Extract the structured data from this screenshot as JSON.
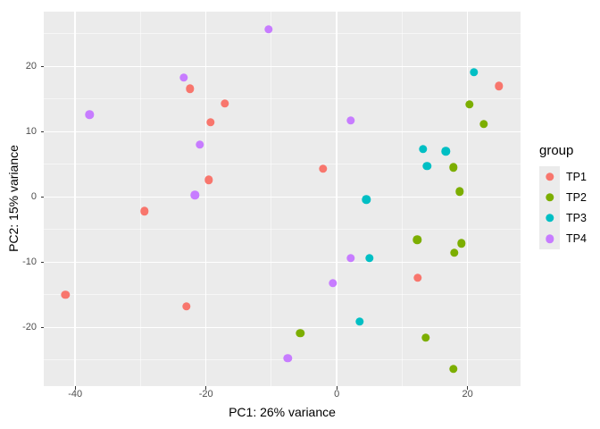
{
  "colors": {
    "background": "#FFFFFF",
    "panel_background": "#EBEBEB",
    "grid_major": "#FFFFFF",
    "tick_mark": "#333333",
    "tick_label": "#4D4D4D",
    "axis_title": "#000000"
  },
  "chart_data": {
    "type": "scatter",
    "title": "",
    "xlabel": "PC1: 26% variance",
    "ylabel": "PC2: 15% variance",
    "legend_title": "group",
    "legend_position": "right",
    "grid": "on",
    "xlim": [
      -44.8,
      28.1
    ],
    "ylim": [
      -29.0,
      28.4
    ],
    "x_ticks": [
      -40,
      -20,
      0,
      20
    ],
    "x_tick_labels": [
      "-40",
      "-20",
      "0",
      "20"
    ],
    "y_ticks": [
      -20,
      -10,
      0,
      10,
      20
    ],
    "y_tick_labels": [
      "-20",
      "-10",
      "0",
      "10",
      "20"
    ],
    "x_minor_ticks": [
      -30,
      -10,
      10
    ],
    "y_minor_ticks": [
      -25,
      -15,
      -5,
      5,
      15,
      25
    ],
    "series": [
      {
        "name": "TP1",
        "color": "#F8766D",
        "points": [
          [
            -22.4,
            16.6
          ],
          [
            -17.1,
            14.3
          ],
          [
            -19.3,
            11.4
          ],
          [
            -19.6,
            2.6
          ],
          [
            -2.1,
            4.3
          ],
          [
            -29.4,
            -2.2
          ],
          [
            -41.5,
            -15.0
          ],
          [
            -23.0,
            -16.8
          ],
          [
            24.8,
            17.0
          ],
          [
            12.4,
            -12.4
          ]
        ]
      },
      {
        "name": "TP2",
        "color": "#7CAE00",
        "points": [
          [
            20.3,
            14.2
          ],
          [
            22.5,
            11.2
          ],
          [
            17.8,
            4.5
          ],
          [
            18.8,
            0.8
          ],
          [
            12.3,
            -6.6
          ],
          [
            19.1,
            -7.1
          ],
          [
            18.0,
            -8.6
          ],
          [
            -5.6,
            -20.9
          ],
          [
            13.6,
            -21.6
          ],
          [
            17.8,
            -26.4
          ]
        ]
      },
      {
        "name": "TP3",
        "color": "#00BFC4",
        "points": [
          [
            21.0,
            19.1
          ],
          [
            13.2,
            7.3
          ],
          [
            16.7,
            7.0
          ],
          [
            13.8,
            4.7
          ],
          [
            4.5,
            -0.4
          ],
          [
            5.0,
            -9.4
          ],
          [
            3.5,
            -19.1
          ]
        ]
      },
      {
        "name": "TP4",
        "color": "#C77CFF",
        "points": [
          [
            -10.4,
            25.7
          ],
          [
            -23.4,
            18.3
          ],
          [
            -37.8,
            12.6
          ],
          [
            -20.9,
            8.0
          ],
          [
            -21.7,
            0.3
          ],
          [
            2.1,
            11.7
          ],
          [
            2.1,
            -9.4
          ],
          [
            -0.6,
            -13.2
          ],
          [
            -7.5,
            -24.7
          ]
        ]
      }
    ]
  }
}
